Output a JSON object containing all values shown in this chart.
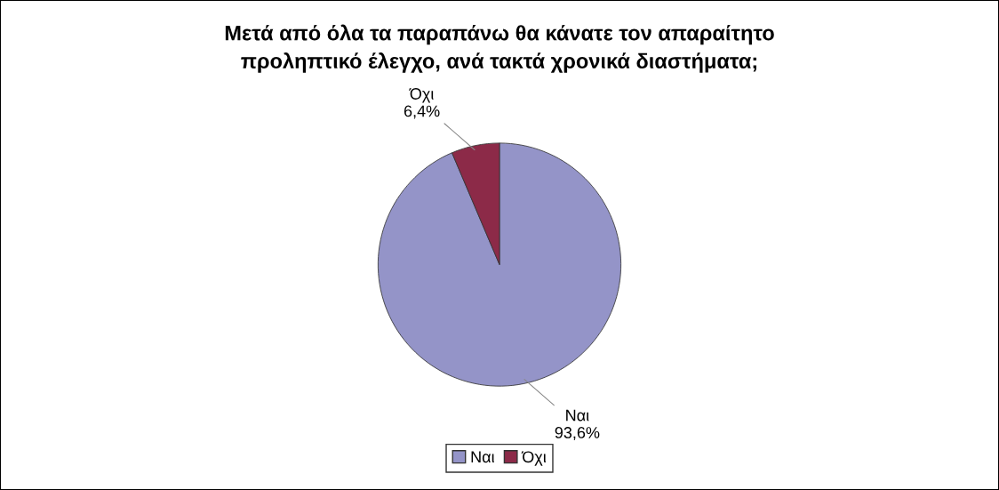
{
  "chart_data": {
    "type": "pie",
    "title": "Μετά από όλα τα παραπάνω θα κάνατε τον απαραίτητο\nπροληπτικό έλεγχο, ανά τακτά χρονικά διαστήματα;",
    "categories": [
      "Ναι",
      "Όχι"
    ],
    "values": [
      93.6,
      6.4
    ],
    "colors": [
      "#9494c8",
      "#8c2a48"
    ],
    "value_labels": [
      "Ναι\n93,6%",
      "Όχι\n6,4%"
    ],
    "legend": "bottom"
  }
}
